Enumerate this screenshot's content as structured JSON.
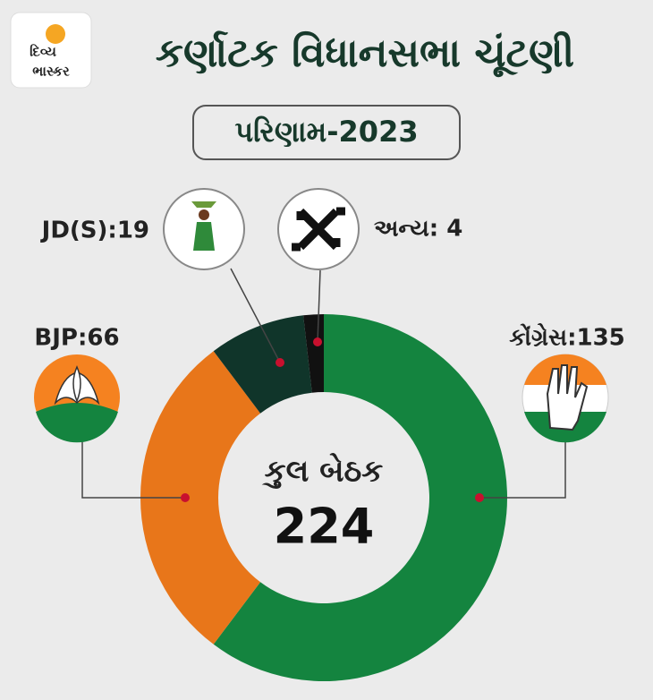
{
  "logo": {
    "line1": "દિવ્ય",
    "line2": "ભાસ્કર"
  },
  "chart_data": {
    "type": "donut",
    "title": "કર્ણાટક વિધાનસભા ચૂંટણી",
    "subtitle": "પરિણામ-2023",
    "center_title": "કુલ બેઠક",
    "total": 224,
    "values": [
      135,
      66,
      19,
      4
    ],
    "value_labels": [
      "કોંગ્રેસ:135",
      "BJP:66",
      "JD(S):19",
      "અન્ય: 4"
    ],
    "colors": [
      "#14843f",
      "#e8761a",
      "#10352a",
      "#111111"
    ]
  }
}
